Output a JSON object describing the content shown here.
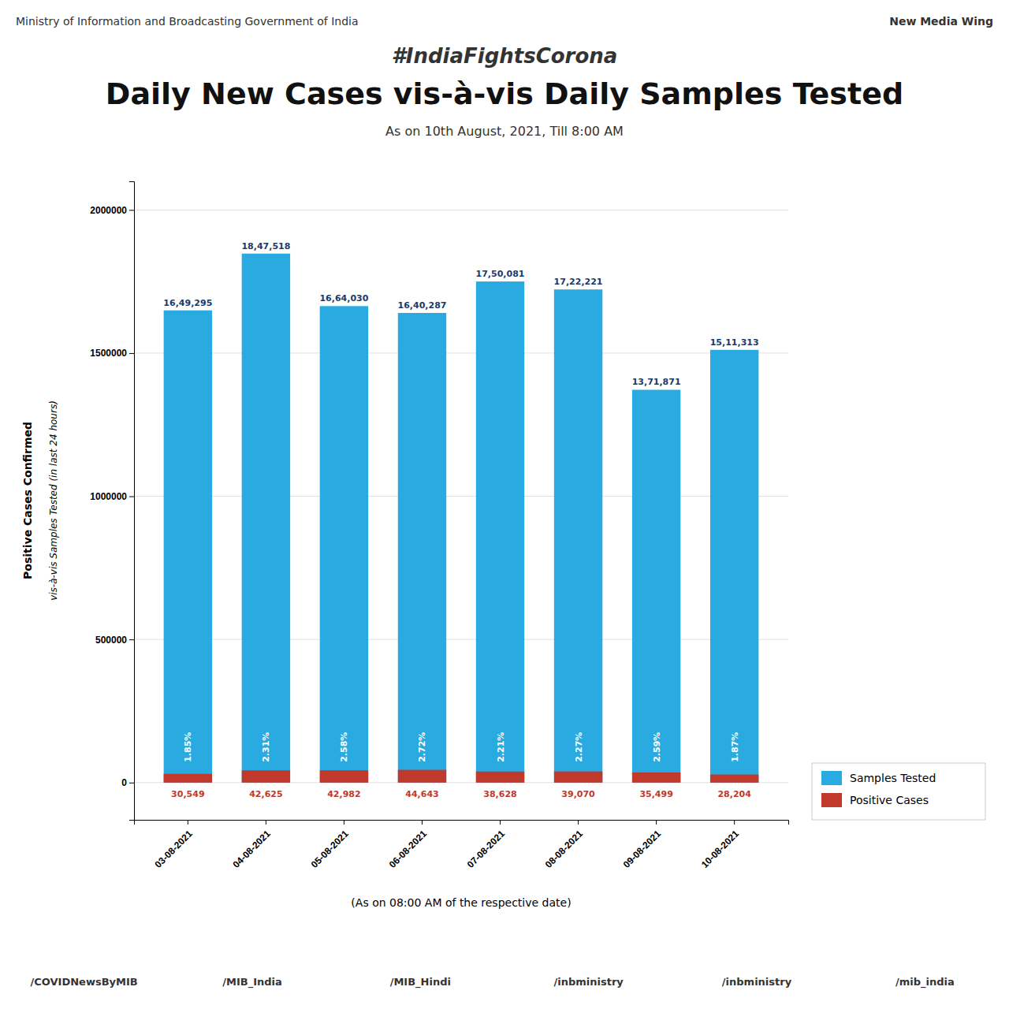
{
  "chart_data": {
    "type": "bar",
    "title": "Daily New Cases vis-à-vis Daily Samples Tested",
    "subtitle": "#IndiaFightsCorona",
    "y_label": "Positive Cases Confirmed",
    "x_label": "(As on 08:00 AM of the respective date)",
    "annotations": [
      "Ministry of Information and Broadcasting Government of India",
      "New Media Wing",
      "As on 10th August, 2021, Till 8:00 AM",
      "vis-à-vis Samples Tested (in last 24 hours)",
      "/COVIDNewsByMIB",
      "/MIB_India",
      "/MIB_Hindi",
      "/inbministry",
      "/inbministry",
      "/mib_india"
    ],
    "categories": [
      "03-08-2021",
      "04-08-2021",
      "05-08-2021",
      "06-08-2021",
      "07-08-2021",
      "08-08-2021",
      "09-08-2021",
      "10-08-2021"
    ],
    "series": [
      {
        "name": "Samples Tested",
        "color": "#29ABE2",
        "values": [
          1649295,
          1847518,
          1664030,
          1640287,
          1750081,
          1722221,
          1371871,
          1511313
        ],
        "value_labels": [
          "16,49,295",
          "18,47,518",
          "16,64,030",
          "16,40,287",
          "17,50,081",
          "17,22,221",
          "13,71,871",
          "15,11,313"
        ],
        "positivity_rates": [
          1.85,
          2.31,
          2.58,
          2.72,
          2.21,
          2.27,
          2.59,
          1.87
        ],
        "positivity_rate_labels": [
          "1.85%",
          "2.31%",
          "2.58%",
          "2.72%",
          "2.21%",
          "2.27%",
          "2.59%",
          "1.87%"
        ]
      },
      {
        "name": "Positive Cases",
        "color": "#C0392B",
        "values": [
          30549,
          42625,
          42982,
          44643,
          38628,
          39070,
          35499,
          28204
        ],
        "value_labels": [
          "30,549",
          "42,625",
          "42,982",
          "44,643",
          "38,628",
          "39,070",
          "35,499",
          "28,204"
        ]
      }
    ],
    "ylim": [
      -130000,
      2100000
    ],
    "yticks": [
      0,
      500000,
      1000000,
      1500000,
      2000000
    ],
    "grid": true,
    "legend": "lower right",
    "data_labels": true
  }
}
